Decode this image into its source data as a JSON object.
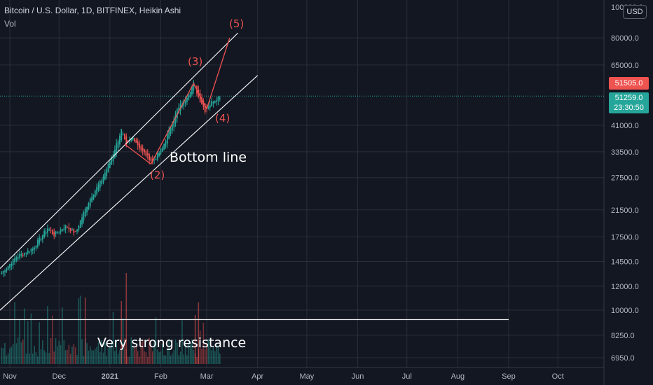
{
  "header": {
    "title": "Bitcoin / U.S. Dollar, 1D, BITFINEX, Heikin Ashi",
    "volume_label": "Vol",
    "currency": "USD"
  },
  "price_tags": {
    "red_value": "51505.0",
    "green_value": "51259.0",
    "countdown": "23:30:50"
  },
  "annotations": {
    "w2": "(2)",
    "w3": "(3)",
    "w4": "(4)",
    "w5": "(5)",
    "bottom_line": "Bottom  line",
    "resistance": "Very strong resistance"
  },
  "colors": {
    "background": "#131722",
    "up": "#26a69a",
    "down": "#ef5350",
    "channel": "#ffffff",
    "wave": "#ef5350"
  },
  "chart_data": {
    "type": "candlestick",
    "title": "Bitcoin / U.S. Dollar, 1D, BITFINEX, Heikin Ashi",
    "y_scale": "log",
    "y_tick_labels": [
      "80000.0",
      "65000.0",
      "51505.0",
      "51259.0",
      "41000.0",
      "33500.0",
      "27500.0",
      "21500.0",
      "17500.0",
      "14500.0",
      "12000.0",
      "10000.0",
      "8250.0",
      "6950.0"
    ],
    "y_ticks": [
      80000,
      65000,
      41000,
      33500,
      27500,
      21500,
      17500,
      14500,
      12000,
      10000,
      8250,
      6950
    ],
    "y_top_partial": "100000.0",
    "x_tick_labels": [
      "Nov",
      "Dec",
      "2021",
      "Feb",
      "Mar",
      "Apr",
      "May",
      "Jun",
      "Jul",
      "Aug",
      "Sep",
      "Oct"
    ],
    "x_ticks": [
      "2020-11-01",
      "2020-12-01",
      "2021-01-01",
      "2021-02-01",
      "2021-03-01",
      "2021-04-01",
      "2021-05-01",
      "2021-06-01",
      "2021-07-01",
      "2021-08-01",
      "2021-09-01",
      "2021-10-01"
    ],
    "last_price": 51259.0,
    "resistance_level": 9300,
    "price_anchors": [
      {
        "date": "2020-10-27",
        "price": 13300
      },
      {
        "date": "2020-11-05",
        "price": 15000
      },
      {
        "date": "2020-11-15",
        "price": 16000
      },
      {
        "date": "2020-11-24",
        "price": 18700
      },
      {
        "date": "2020-11-28",
        "price": 17800
      },
      {
        "date": "2020-12-05",
        "price": 19000
      },
      {
        "date": "2020-12-11",
        "price": 18000
      },
      {
        "date": "2020-12-16",
        "price": 21000
      },
      {
        "date": "2020-12-20",
        "price": 23500
      },
      {
        "date": "2020-12-27",
        "price": 27000
      },
      {
        "date": "2021-01-02",
        "price": 32000
      },
      {
        "date": "2021-01-08",
        "price": 39500
      },
      {
        "date": "2021-01-11",
        "price": 35000
      },
      {
        "date": "2021-01-15",
        "price": 37500
      },
      {
        "date": "2021-01-20",
        "price": 34000
      },
      {
        "date": "2021-01-27",
        "price": 31000
      },
      {
        "date": "2021-02-02",
        "price": 34500
      },
      {
        "date": "2021-02-08",
        "price": 42000
      },
      {
        "date": "2021-02-11",
        "price": 46000
      },
      {
        "date": "2021-02-16",
        "price": 50000
      },
      {
        "date": "2021-02-21",
        "price": 56500
      },
      {
        "date": "2021-02-24",
        "price": 51000
      },
      {
        "date": "2021-02-28",
        "price": 46000
      },
      {
        "date": "2021-03-04",
        "price": 49000
      },
      {
        "date": "2021-03-09",
        "price": 51259
      }
    ],
    "channel": [
      {
        "name": "upper",
        "from": {
          "date": "2020-10-27",
          "price": 13900
        },
        "to": {
          "date": "2021-03-20",
          "price": 83000
        }
      },
      {
        "name": "lower",
        "from": {
          "date": "2020-10-27",
          "price": 10100
        },
        "to": {
          "date": "2021-04-01",
          "price": 60000
        }
      }
    ],
    "wave_path": [
      {
        "label": "",
        "date": "2021-01-10",
        "price": 35500
      },
      {
        "label": "(2)",
        "date": "2021-01-26",
        "price": 30500
      },
      {
        "label": "(3)",
        "date": "2021-02-21",
        "price": 56500
      },
      {
        "label": "(4)",
        "date": "2021-03-01",
        "price": 46500
      },
      {
        "label": "(5)",
        "date": "2021-03-15",
        "price": 80000
      }
    ]
  }
}
